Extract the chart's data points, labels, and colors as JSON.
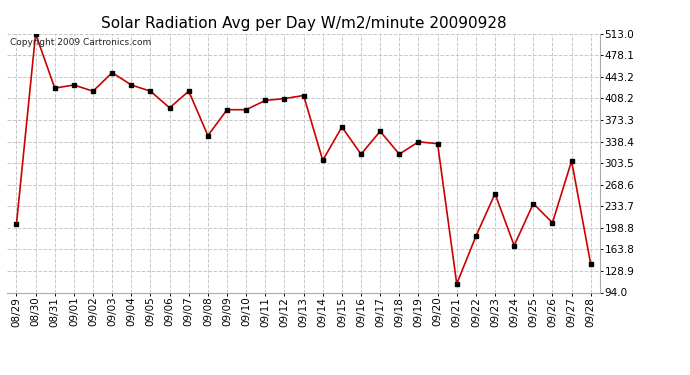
{
  "title": "Solar Radiation Avg per Day W/m2/minute 20090928",
  "copyright": "Copyright 2009 Cartronics.com",
  "labels": [
    "08/29",
    "08/30",
    "08/31",
    "09/01",
    "09/02",
    "09/03",
    "09/04",
    "09/05",
    "09/06",
    "09/07",
    "09/08",
    "09/09",
    "09/10",
    "09/11",
    "09/12",
    "09/13",
    "09/14",
    "09/15",
    "09/16",
    "09/17",
    "09/18",
    "09/19",
    "09/20",
    "09/21",
    "09/22",
    "09/23",
    "09/24",
    "09/25",
    "09/26",
    "09/27",
    "09/28"
  ],
  "values": [
    205,
    513,
    425,
    430,
    420,
    450,
    430,
    420,
    393,
    420,
    348,
    390,
    390,
    405,
    408,
    413,
    308,
    362,
    318,
    355,
    318,
    338,
    335,
    108,
    185,
    254,
    170,
    238,
    207,
    307,
    140
  ],
  "ylim": [
    94.0,
    513.0
  ],
  "yticks": [
    94.0,
    128.9,
    163.8,
    198.8,
    233.7,
    268.6,
    303.5,
    338.4,
    373.3,
    408.2,
    443.2,
    478.1,
    513.0
  ],
  "line_color": "#cc0000",
  "marker_color": "#000000",
  "bg_color": "#ffffff",
  "grid_color": "#c8c8c8",
  "title_fontsize": 11,
  "tick_fontsize": 7.5,
  "copyright_fontsize": 6.5
}
